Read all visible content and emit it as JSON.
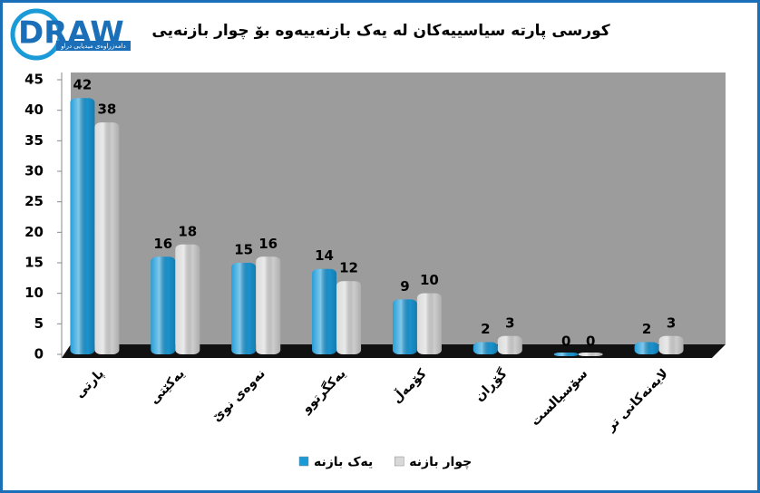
{
  "logo": {
    "name": "DRAW",
    "tagline": "دامەزراوەی میدیایی دراو"
  },
  "chart_data": {
    "type": "bar",
    "title": "کورسی پارتە سیاسییەکان لە یەک بازنەییەوە بۆ چوار بازنەیی",
    "categories": [
      "پارتی",
      "یەکێتی",
      "نەوەی نوێ",
      "یەکگرتوو",
      "کۆمەڵ",
      "گۆڕان",
      "سۆسیالست",
      "لایەنەکانی تر"
    ],
    "series": [
      {
        "name": "یەک بازنە",
        "color": "#1b9ad8",
        "values": [
          42,
          16,
          15,
          14,
          9,
          2,
          0,
          2
        ]
      },
      {
        "name": "چوار بازنە",
        "color": "#d8d8d8",
        "values": [
          38,
          18,
          16,
          12,
          10,
          3,
          0,
          3
        ]
      }
    ],
    "ylim": [
      0,
      45
    ],
    "yticks": [
      0,
      5,
      10,
      15,
      20,
      25,
      30,
      35,
      40,
      45
    ],
    "grid": false,
    "legend": "bottom"
  }
}
